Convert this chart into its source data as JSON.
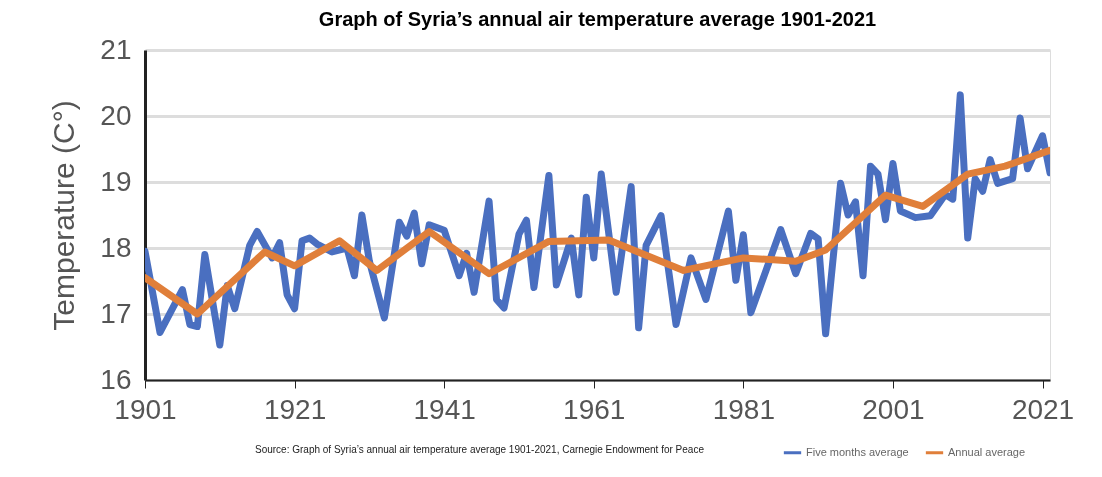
{
  "chart_data": {
    "type": "line",
    "title": "Graph of Syria’s annual air temperature average 1901-2021",
    "ylabel": "Temperature (C°)",
    "xlim": [
      1901,
      2022
    ],
    "xticks": [
      1901,
      1921,
      1941,
      1961,
      1981,
      2001,
      2021
    ],
    "ylim": [
      16,
      21
    ],
    "yticks": [
      16,
      17,
      18,
      19,
      20,
      21
    ],
    "grid": "y",
    "legend": "bottom right",
    "line_style": "solid",
    "marker": "none",
    "annotations": [
      "Source: Graph of Syria’s annual air temperature average 1901-2021, Carnegie Endowment for Peace"
    ],
    "series": [
      {
        "name": "Five months average",
        "color": "#4a6fc0",
        "x": [
          1901,
          1903,
          1906,
          1907,
          1908,
          1909,
          1911,
          1912,
          1913,
          1915,
          1916,
          1918,
          1919,
          1920,
          1921,
          1922,
          1923,
          1924,
          1926,
          1928,
          1929,
          1930,
          1931,
          1933,
          1935,
          1936,
          1937,
          1938,
          1939,
          1941,
          1943,
          1944,
          1945,
          1947,
          1948,
          1949,
          1951,
          1952,
          1953,
          1955,
          1956,
          1958,
          1959,
          1960,
          1961,
          1962,
          1964,
          1966,
          1967,
          1968,
          1970,
          1972,
          1974,
          1976,
          1979,
          1980,
          1981,
          1982,
          1986,
          1988,
          1990,
          1991,
          1992,
          1994,
          1995,
          1996,
          1997,
          1998,
          1999,
          2000,
          2001,
          2002,
          2004,
          2006,
          2008,
          2009,
          2010,
          2011,
          2012,
          2013,
          2014,
          2015,
          2017,
          2018,
          2019,
          2021,
          2022
        ],
        "values": [
          17.95,
          16.72,
          17.37,
          16.84,
          16.81,
          17.9,
          16.53,
          17.43,
          17.08,
          18.04,
          18.25,
          17.85,
          18.08,
          17.29,
          17.08,
          18.11,
          18.15,
          18.06,
          17.94,
          18.0,
          17.58,
          18.5,
          17.8,
          16.94,
          18.39,
          18.18,
          18.53,
          17.76,
          18.35,
          18.27,
          17.58,
          17.92,
          17.33,
          18.71,
          17.22,
          17.09,
          18.21,
          18.42,
          17.4,
          19.1,
          17.44,
          18.15,
          17.29,
          18.77,
          17.85,
          19.12,
          17.33,
          18.93,
          16.79,
          18.04,
          18.49,
          16.84,
          17.85,
          17.22,
          18.56,
          17.51,
          18.2,
          17.02,
          18.28,
          17.61,
          18.22,
          18.14,
          16.7,
          18.98,
          18.5,
          18.7,
          17.58,
          19.24,
          19.12,
          18.43,
          19.28,
          18.56,
          18.46,
          18.49,
          18.81,
          18.74,
          20.32,
          18.15,
          19.05,
          18.86,
          19.34,
          18.98,
          19.05,
          19.97,
          19.2,
          19.7,
          19.14
        ]
      },
      {
        "name": "Annual average",
        "color": "#e07f3a",
        "x": [
          1901,
          1908,
          1917,
          1921,
          1927,
          1932,
          1939,
          1947,
          1955,
          1963,
          1973,
          1981,
          1988,
          1992,
          1995,
          2000,
          2005,
          2011,
          2016,
          2022
        ],
        "values": [
          17.55,
          17.0,
          17.94,
          17.73,
          18.11,
          17.66,
          18.25,
          17.61,
          18.1,
          18.12,
          17.66,
          17.85,
          17.8,
          17.97,
          18.28,
          18.8,
          18.63,
          19.12,
          19.24,
          19.48
        ]
      }
    ]
  }
}
